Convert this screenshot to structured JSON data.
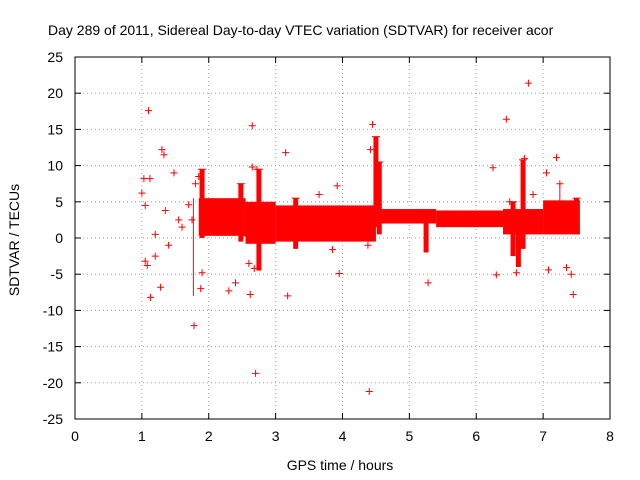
{
  "chart_data": {
    "type": "scatter",
    "title": "Day 289 of 2011, Sidereal Day-to-day VTEC variation (SDTVAR) for receiver acor",
    "xlabel": "GPS time / hours",
    "ylabel": "SDTVAR / TECUs",
    "xlim": [
      0,
      8
    ],
    "ylim": [
      -25,
      25
    ],
    "x_ticks": [
      "0",
      "1",
      "2",
      "3",
      "4",
      "5",
      "6",
      "7",
      "8"
    ],
    "y_ticks": [
      "-25",
      "-20",
      "-15",
      "-10",
      "-5",
      "0",
      "5",
      "10",
      "15",
      "20",
      "25"
    ],
    "grid": true,
    "marker": "+",
    "color": "#ff0000",
    "outlier_points": [
      [
        1.0,
        6.2
      ],
      [
        1.03,
        8.2
      ],
      [
        1.05,
        4.5
      ],
      [
        1.1,
        17.6
      ],
      [
        1.12,
        8.2
      ],
      [
        1.05,
        -3.2
      ],
      [
        1.08,
        -3.8
      ],
      [
        1.13,
        -8.2
      ],
      [
        1.2,
        -2.5
      ],
      [
        1.2,
        0.5
      ],
      [
        1.28,
        -6.8
      ],
      [
        1.3,
        12.2
      ],
      [
        1.33,
        11.5
      ],
      [
        1.35,
        3.8
      ],
      [
        1.4,
        -1.0
      ],
      [
        1.48,
        9.0
      ],
      [
        1.55,
        2.5
      ],
      [
        1.6,
        1.5
      ],
      [
        1.7,
        4.6
      ],
      [
        1.75,
        2.5
      ],
      [
        1.78,
        -12.1
      ],
      [
        1.8,
        7.5
      ],
      [
        1.85,
        8.5
      ],
      [
        1.9,
        -4.8
      ],
      [
        1.88,
        -7.0
      ],
      [
        2.3,
        -7.3
      ],
      [
        2.4,
        -6.2
      ],
      [
        2.5,
        0.3
      ],
      [
        2.6,
        -3.5
      ],
      [
        2.62,
        -7.8
      ],
      [
        2.65,
        15.5
      ],
      [
        2.68,
        -4.2
      ],
      [
        2.7,
        -18.7
      ],
      [
        2.72,
        9.5
      ],
      [
        2.65,
        9.8
      ],
      [
        3.15,
        11.8
      ],
      [
        3.18,
        -8.0
      ],
      [
        3.65,
        6.0
      ],
      [
        3.85,
        -1.6
      ],
      [
        3.92,
        7.2
      ],
      [
        3.95,
        -4.9
      ],
      [
        4.38,
        -1.0
      ],
      [
        4.4,
        -21.2
      ],
      [
        4.42,
        12.2
      ],
      [
        4.45,
        15.7
      ],
      [
        5.28,
        -6.2
      ],
      [
        6.25,
        9.7
      ],
      [
        6.3,
        -5.1
      ],
      [
        6.45,
        16.4
      ],
      [
        6.5,
        5.0
      ],
      [
        6.6,
        -4.8
      ],
      [
        6.72,
        11.0
      ],
      [
        6.78,
        21.4
      ],
      [
        6.85,
        6.0
      ],
      [
        7.05,
        9.0
      ],
      [
        7.08,
        -4.4
      ],
      [
        7.2,
        11.1
      ],
      [
        7.25,
        7.5
      ],
      [
        7.35,
        -4.1
      ],
      [
        7.42,
        -5.0
      ],
      [
        7.45,
        -7.8
      ]
    ],
    "main_band": [
      {
        "start": 1.85,
        "end": 2.55,
        "lower": 0.3,
        "upper": 5.5
      },
      {
        "start": 2.55,
        "end": 3.0,
        "lower": -0.8,
        "upper": 5.0
      },
      {
        "start": 3.0,
        "end": 4.5,
        "lower": -0.5,
        "upper": 4.5
      },
      {
        "start": 4.5,
        "end": 5.4,
        "lower": 2.0,
        "upper": 4.0
      },
      {
        "start": 5.4,
        "end": 6.4,
        "lower": 1.5,
        "upper": 3.8
      },
      {
        "start": 6.4,
        "end": 7.0,
        "lower": 0.5,
        "upper": 4.0
      },
      {
        "start": 7.0,
        "end": 7.55,
        "lower": 0.5,
        "upper": 5.2
      }
    ],
    "spikes": [
      {
        "x": 1.9,
        "top": 9.5,
        "bottom": 0.0
      },
      {
        "x": 2.48,
        "top": 7.5,
        "bottom": -0.5
      },
      {
        "x": 2.75,
        "top": 9.5,
        "bottom": -4.5
      },
      {
        "x": 3.3,
        "top": 5.5,
        "bottom": -1.5
      },
      {
        "x": 4.5,
        "top": 14.0,
        "bottom": 1.5
      },
      {
        "x": 4.55,
        "top": 10.5,
        "bottom": 0.5
      },
      {
        "x": 5.25,
        "top": 3.0,
        "bottom": -2.0
      },
      {
        "x": 6.55,
        "top": 5.0,
        "bottom": -2.5
      },
      {
        "x": 6.63,
        "top": 3.0,
        "bottom": -4.0
      },
      {
        "x": 6.7,
        "top": 10.8,
        "bottom": -1.5
      },
      {
        "x": 7.5,
        "top": 5.5,
        "bottom": 0.5
      }
    ],
    "error_bars": [
      {
        "x": 1.77,
        "top": 5.5,
        "bottom": -8.0
      },
      {
        "x": 7.25,
        "top": 7.5,
        "bottom": 2.5
      }
    ]
  }
}
